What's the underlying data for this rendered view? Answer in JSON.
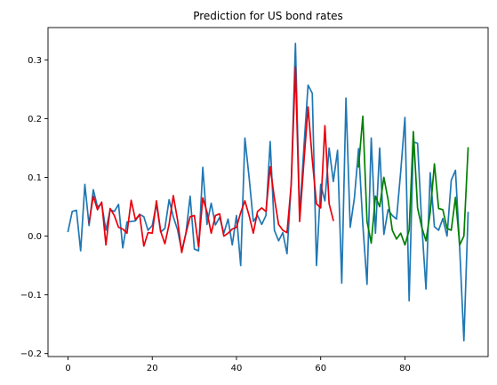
{
  "chart_data": {
    "type": "line",
    "title": "Prediction for US bond rates",
    "xlabel": "",
    "ylabel": "",
    "xlim": [
      -4.75,
      99.75
    ],
    "ylim": [
      -0.205,
      0.355
    ],
    "grid": false,
    "legend": "none",
    "x_ticks": [
      0,
      20,
      40,
      60,
      80
    ],
    "y_ticks": [
      -0.2,
      -0.1,
      0.0,
      0.1,
      0.2,
      0.3
    ],
    "series": [
      {
        "color": "#1f77b4",
        "x": [
          0,
          1,
          2,
          3,
          4,
          5,
          6,
          7,
          8,
          9,
          10,
          11,
          12,
          13,
          14,
          15,
          16,
          17,
          18,
          19,
          20,
          21,
          22,
          23,
          24,
          25,
          26,
          27,
          28,
          29,
          30,
          31,
          32,
          33,
          34,
          35,
          36,
          37,
          38,
          39,
          40,
          41,
          42,
          43,
          44,
          45,
          46,
          47,
          48,
          49,
          50,
          51,
          52,
          53,
          54,
          55,
          56,
          57,
          58,
          59,
          60,
          61,
          62,
          63,
          64,
          65,
          66,
          67,
          68,
          69,
          70,
          71,
          72,
          73,
          74,
          75,
          76,
          77,
          78,
          79,
          80,
          81,
          82,
          83,
          84,
          85,
          86,
          87,
          88,
          89,
          90,
          91,
          92,
          93,
          94,
          95
        ],
        "y": [
          0.008,
          0.042,
          0.044,
          -0.025,
          0.088,
          0.018,
          0.079,
          0.05,
          0.055,
          0.01,
          0.045,
          0.042,
          0.054,
          -0.02,
          0.024,
          0.025,
          0.026,
          0.037,
          0.033,
          0.01,
          0.018,
          0.055,
          0.007,
          0.013,
          0.062,
          0.033,
          0.011,
          -0.025,
          0.005,
          0.068,
          -0.022,
          -0.025,
          0.117,
          0.02,
          0.056,
          0.019,
          0.032,
          0.005,
          0.029,
          -0.015,
          0.035,
          -0.05,
          0.167,
          0.1,
          0.025,
          0.035,
          0.02,
          0.035,
          0.161,
          0.01,
          -0.008,
          0.006,
          -0.03,
          0.09,
          0.328,
          0.035,
          0.15,
          0.257,
          0.243,
          -0.05,
          0.088,
          0.06,
          0.15,
          0.093,
          0.146,
          -0.08,
          0.235,
          0.015,
          0.065,
          0.149,
          0.02,
          -0.082,
          0.167,
          0.005,
          0.15,
          0.003,
          0.045,
          0.035,
          0.029,
          0.11,
          0.202,
          -0.11,
          0.16,
          0.158,
          0.02,
          -0.09,
          0.108,
          0.016,
          0.01,
          0.03,
          0.0,
          0.095,
          0.112,
          -0.02,
          -0.178,
          0.04
        ]
      },
      {
        "color": "#e8000b",
        "x": [
          5,
          6,
          7,
          8,
          9,
          10,
          11,
          12,
          13,
          14,
          15,
          16,
          17,
          18,
          19,
          20,
          21,
          22,
          23,
          24,
          25,
          26,
          27,
          28,
          29,
          30,
          31,
          32,
          33,
          34,
          35,
          36,
          37,
          38,
          39,
          40,
          41,
          42,
          43,
          44,
          45,
          46,
          47,
          48,
          49,
          50,
          51,
          52,
          53,
          54,
          55,
          56,
          57,
          58,
          59,
          60,
          61,
          62,
          63
        ],
        "y": [
          0.023,
          0.068,
          0.045,
          0.058,
          -0.015,
          0.047,
          0.035,
          0.015,
          0.012,
          0.005,
          0.061,
          0.028,
          0.037,
          -0.017,
          0.006,
          0.005,
          0.06,
          0.008,
          -0.013,
          0.02,
          0.069,
          0.028,
          -0.028,
          0.005,
          0.033,
          0.035,
          -0.018,
          0.065,
          0.041,
          0.005,
          0.035,
          0.038,
          0.0,
          0.005,
          0.012,
          0.015,
          0.04,
          0.06,
          0.035,
          0.005,
          0.042,
          0.048,
          0.042,
          0.118,
          0.065,
          0.02,
          0.01,
          0.006,
          0.088,
          0.288,
          0.025,
          0.125,
          0.22,
          0.13,
          0.055,
          0.048,
          0.188,
          0.055,
          0.027
        ]
      },
      {
        "color": "#008000",
        "x": [
          69,
          70,
          71,
          72,
          73,
          74,
          75,
          76,
          77,
          78,
          79,
          80,
          81,
          82,
          83,
          84,
          85,
          86,
          87,
          88,
          89,
          90,
          91,
          92,
          93,
          94,
          95
        ],
        "y": [
          0.118,
          0.204,
          0.025,
          -0.012,
          0.068,
          0.05,
          0.1,
          0.062,
          0.01,
          -0.005,
          0.005,
          -0.015,
          0.01,
          0.178,
          0.048,
          0.015,
          -0.008,
          0.04,
          0.123,
          0.047,
          0.045,
          0.013,
          0.01,
          0.066,
          -0.015,
          0.0,
          0.15
        ]
      }
    ]
  }
}
